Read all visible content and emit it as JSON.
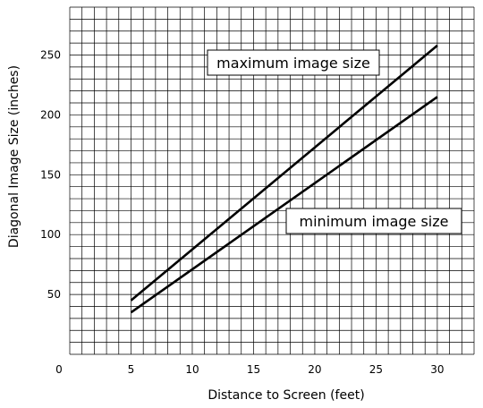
{
  "chart_data": {
    "type": "line",
    "title": "",
    "xlabel": "Distance to Screen (feet)",
    "ylabel": "Diagonal Image Size (inches)",
    "xlim": [
      0,
      33
    ],
    "ylim": [
      0,
      290
    ],
    "x_ticks": [
      {
        "value": 0,
        "label": "0"
      },
      {
        "value": 5,
        "label": "5"
      },
      {
        "value": 10,
        "label": "10"
      },
      {
        "value": 15,
        "label": "15"
      },
      {
        "value": 20,
        "label": "20"
      },
      {
        "value": 25,
        "label": "25"
      },
      {
        "value": 30,
        "label": "30"
      }
    ],
    "y_ticks": [
      {
        "value": 50,
        "label": "50"
      },
      {
        "value": 100,
        "label": "100"
      },
      {
        "value": 150,
        "label": "150"
      },
      {
        "value": 200,
        "label": "200"
      },
      {
        "value": 250,
        "label": "250"
      }
    ],
    "grid": true,
    "grid_minor_x": 1,
    "grid_minor_y": 10,
    "series": [
      {
        "name": "maximum image size",
        "x": [
          5,
          30
        ],
        "y": [
          45,
          258
        ],
        "color": "#000000"
      },
      {
        "name": "minimum image size",
        "x": [
          5,
          30
        ],
        "y": [
          35,
          215
        ],
        "color": "#000000"
      }
    ],
    "annotations": [
      {
        "text": "maximum image size",
        "series": "maximum image size"
      },
      {
        "text": "minimum image size",
        "series": "minimum image size"
      }
    ]
  }
}
